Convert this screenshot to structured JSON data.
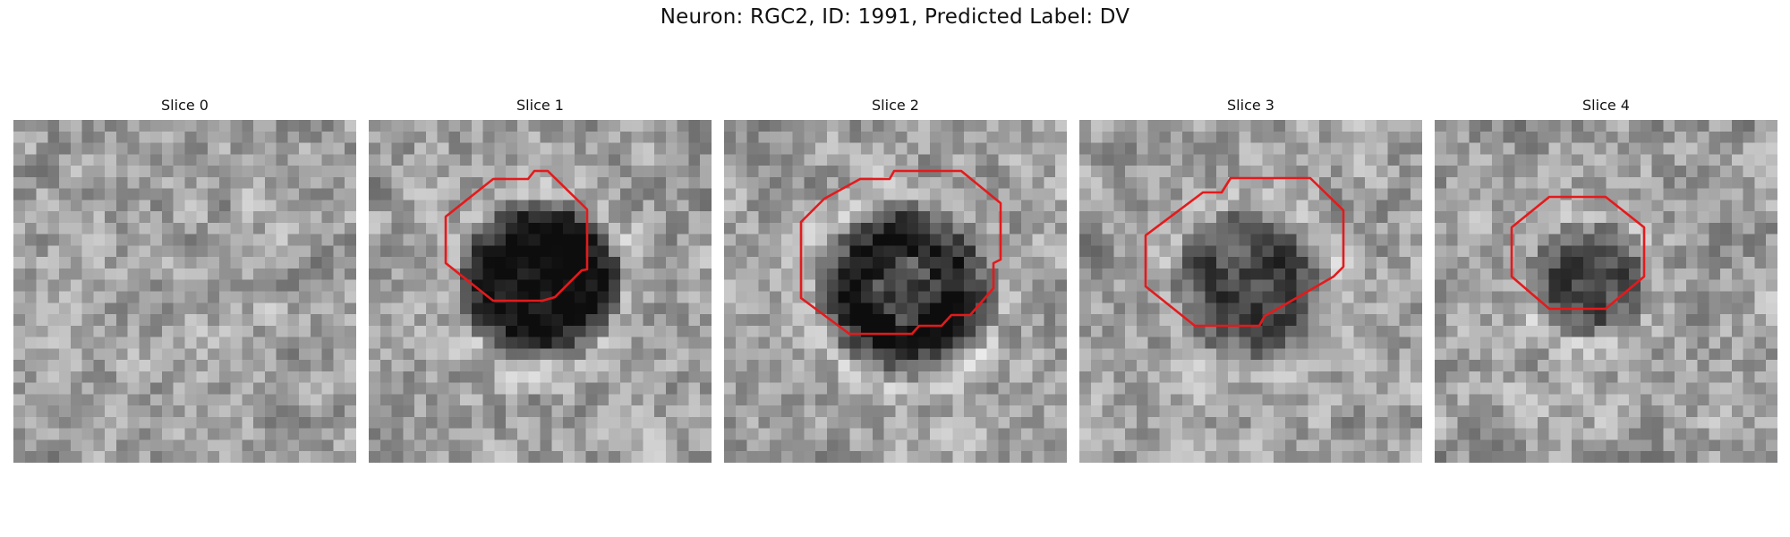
{
  "figure": {
    "title": "Neuron: RGC2, ID: 1991, Predicted Label: DV"
  },
  "colors": {
    "outline": "#e41a1c",
    "colormap": "grayscale"
  },
  "panels": [
    {
      "title": "Slice 0",
      "has_outline": false
    },
    {
      "title": "Slice 1",
      "has_outline": true
    },
    {
      "title": "Slice 2",
      "has_outline": true
    },
    {
      "title": "Slice 3",
      "has_outline": true
    },
    {
      "title": "Slice 4",
      "has_outline": true
    }
  ]
}
